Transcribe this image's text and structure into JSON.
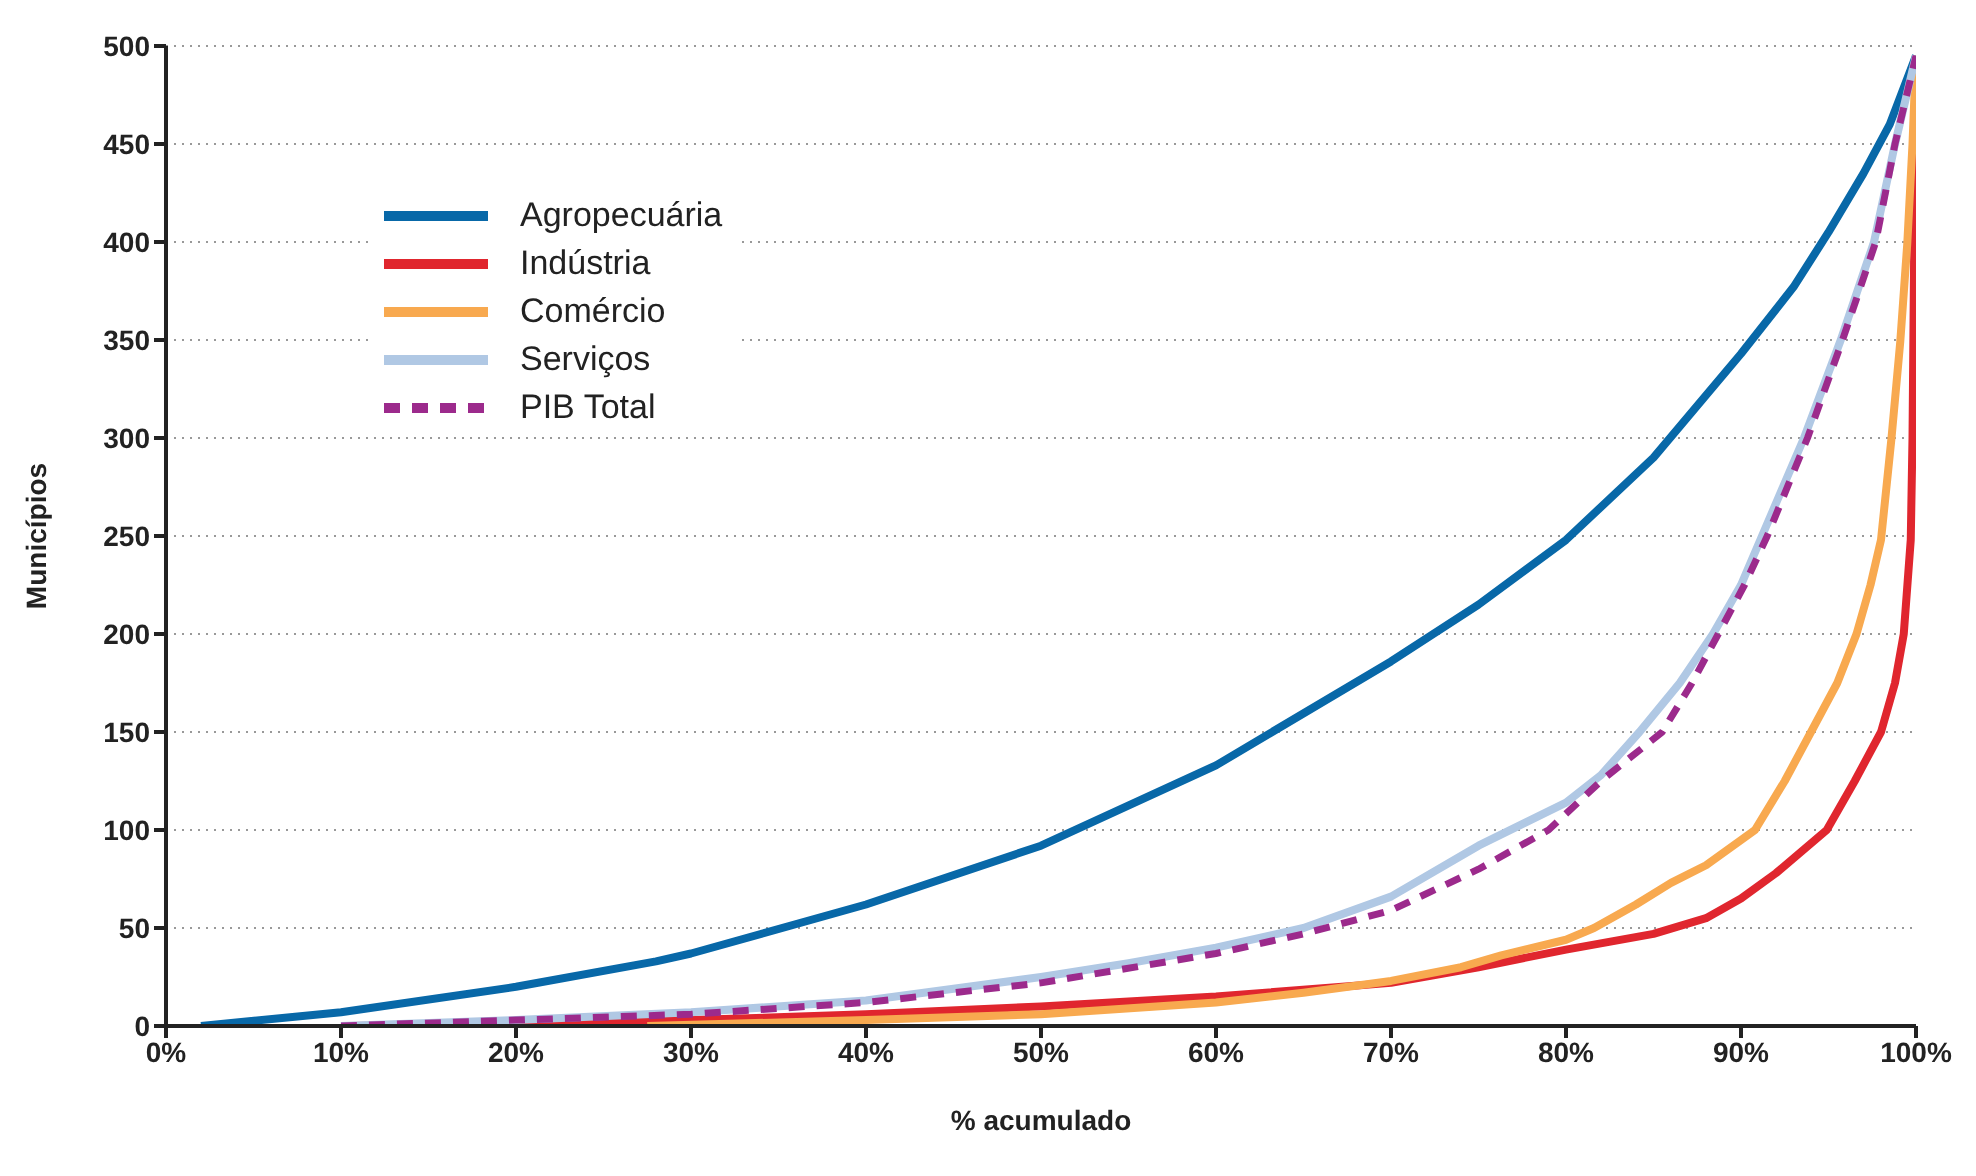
{
  "chart_data": {
    "type": "line",
    "xlabel": "% acumulado",
    "ylabel": "Municípios",
    "xlim": [
      0,
      100
    ],
    "xticks": [
      {
        "value": 0,
        "label": "0%"
      },
      {
        "value": 10,
        "label": "10%"
      },
      {
        "value": 20,
        "label": "20%"
      },
      {
        "value": 30,
        "label": "30%"
      },
      {
        "value": 40,
        "label": "40%"
      },
      {
        "value": 50,
        "label": "50%"
      },
      {
        "value": 60,
        "label": "60%"
      },
      {
        "value": 70,
        "label": "70%"
      },
      {
        "value": 80,
        "label": "80%"
      },
      {
        "value": 90,
        "label": "90%"
      },
      {
        "value": 100,
        "label": "100%"
      }
    ],
    "ylim": [
      0,
      500
    ],
    "yticks": [
      0,
      50,
      100,
      150,
      200,
      250,
      300,
      350,
      400,
      450,
      500
    ],
    "grid": "y",
    "legend": "top left",
    "marker": "none",
    "series": [
      {
        "name": "Agropecuária",
        "color": "#0868a8",
        "line_style": "solid",
        "x": [
          2,
          10,
          20,
          28,
          30,
          40,
          50,
          60,
          70,
          75,
          80,
          85,
          90,
          93,
          95,
          97,
          98.5,
          100
        ],
        "values": [
          0,
          7,
          20,
          33,
          37,
          62,
          92,
          133,
          186,
          215,
          248,
          290,
          343,
          377,
          405,
          435,
          460,
          495
        ]
      },
      {
        "name": "Indústria",
        "color": "#e0262e",
        "line_style": "solid",
        "x": [
          10.5,
          20,
          30,
          40,
          50,
          60,
          70,
          75,
          80,
          85,
          88,
          90,
          92,
          94.9,
          96.5,
          98,
          98.8,
          99.3,
          99.7,
          99.8,
          99.9,
          100
        ],
        "values": [
          0,
          1,
          3,
          6,
          10,
          15,
          22,
          30,
          39,
          47,
          55,
          65,
          78,
          100,
          125,
          150,
          175,
          200,
          248,
          300,
          400,
          495
        ]
      },
      {
        "name": "Comércio",
        "color": "#f8a94f",
        "line_style": "solid",
        "x": [
          27.5,
          40,
          50,
          60,
          65,
          70,
          74,
          76.3,
          80,
          81.6,
          84,
          86,
          88,
          90.8,
          92.5,
          94,
          95.5,
          96.6,
          97.4,
          98,
          98.6,
          99.1,
          99.5,
          99.8,
          100
        ],
        "values": [
          0,
          3,
          6,
          12,
          17,
          23,
          30,
          36,
          44,
          50,
          62,
          73,
          82,
          100,
          125,
          150,
          175,
          200,
          225,
          248,
          300,
          349,
          399,
          450,
          495
        ]
      },
      {
        "name": "Serviços",
        "color": "#b0c8e4",
        "line_style": "solid",
        "x": [
          10,
          20,
          30,
          40,
          45,
          50,
          55,
          60,
          65,
          70,
          75,
          80,
          82,
          84.2,
          86.5,
          88.4,
          90,
          91.2,
          93.6,
          95.7,
          97.6,
          98.8,
          100
        ],
        "values": [
          0,
          3,
          7,
          13,
          19,
          25,
          32,
          40,
          50,
          66,
          92,
          114,
          128,
          150,
          175,
          200,
          225,
          250,
          300,
          350,
          400,
          450,
          495
        ]
      },
      {
        "name": "PIB Total",
        "color": "#9c2a8c",
        "line_style": "dashed",
        "x": [
          10,
          20,
          30,
          40,
          50,
          60,
          65,
          70,
          75,
          79,
          82,
          85.5,
          87.2,
          88.7,
          90.2,
          91.5,
          93.8,
          95.8,
          97.7,
          98.8,
          100
        ],
        "values": [
          0,
          3,
          6,
          12,
          22,
          37,
          47,
          59,
          80,
          100,
          125,
          150,
          175,
          200,
          225,
          250,
          300,
          350,
          400,
          450,
          495
        ]
      }
    ]
  }
}
